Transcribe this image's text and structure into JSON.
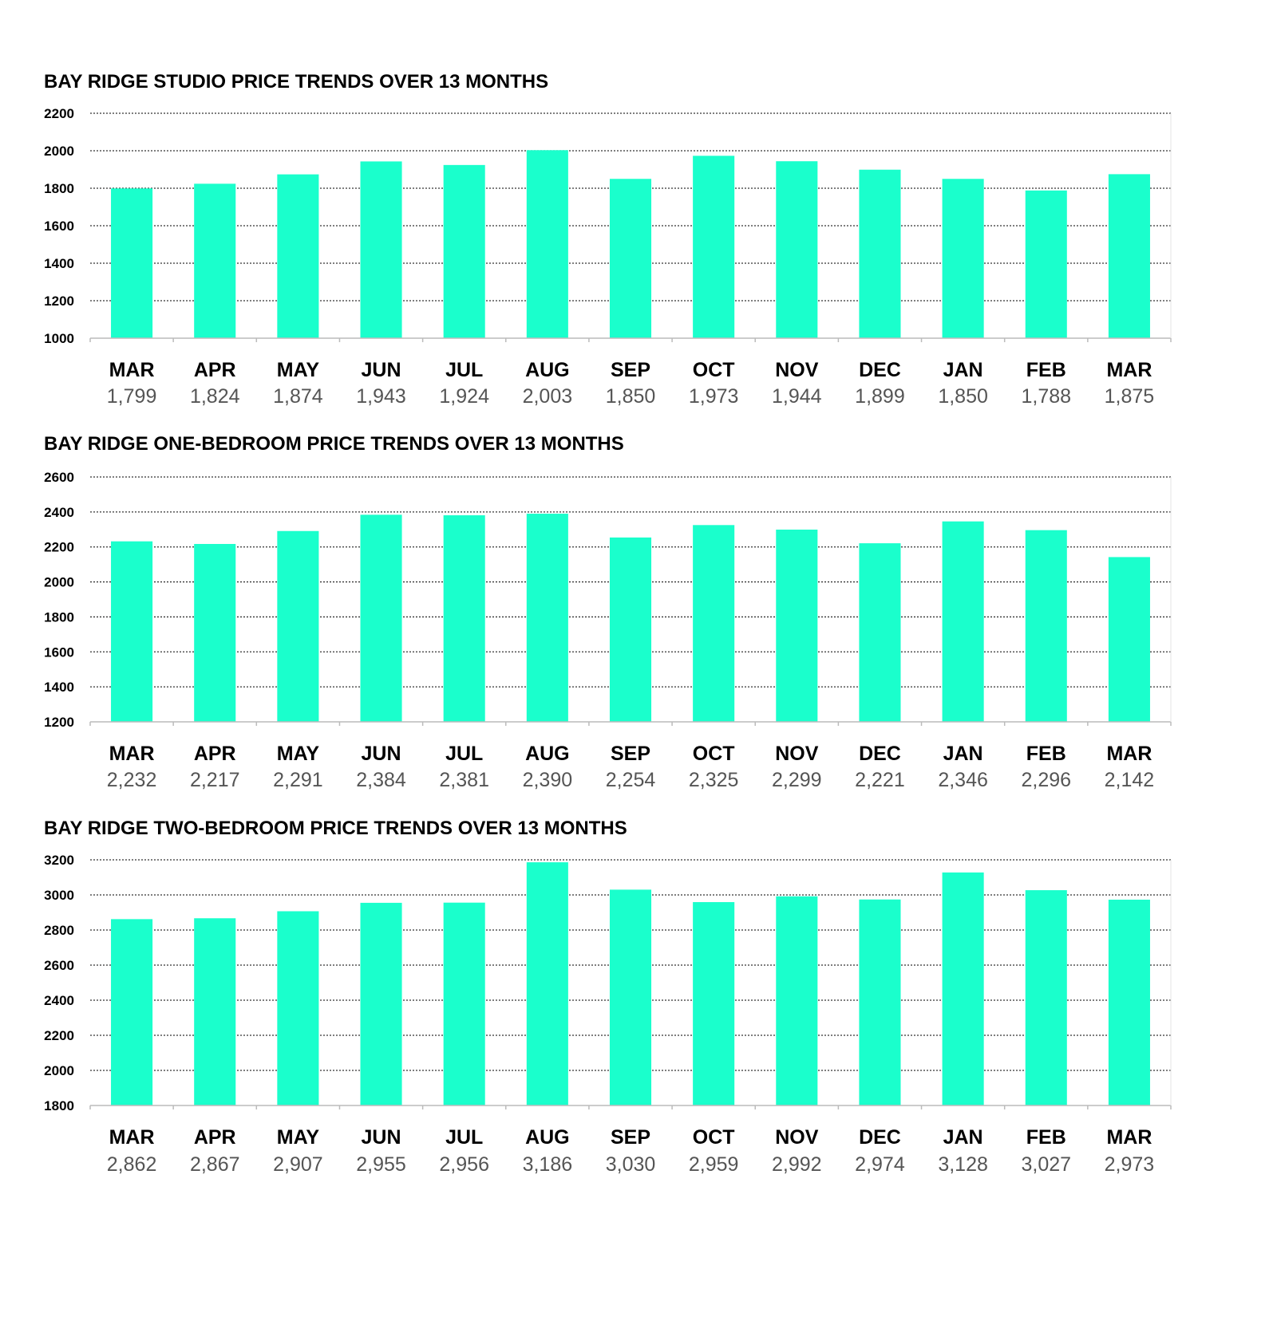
{
  "chart_data": [
    {
      "type": "bar",
      "title": "BAY RIDGE STUDIO PRICE TRENDS OVER 13 MONTHS",
      "categories": [
        "MAR",
        "APR",
        "MAY",
        "JUN",
        "JUL",
        "AUG",
        "SEP",
        "OCT",
        "NOV",
        "DEC",
        "JAN",
        "FEB",
        "MAR"
      ],
      "values": [
        1799,
        1824,
        1874,
        1943,
        1924,
        2003,
        1850,
        1973,
        1944,
        1899,
        1850,
        1788,
        1875
      ],
      "value_labels": [
        "1,799",
        "1,824",
        "1,874",
        "1,943",
        "1,924",
        "2,003",
        "1,850",
        "1,973",
        "1,944",
        "1,899",
        "1,850",
        "1,788",
        "1,875"
      ],
      "yticks": [
        1000,
        1200,
        1400,
        1600,
        1800,
        2000,
        2200
      ],
      "ylim": [
        1000,
        2200
      ],
      "grid": true,
      "xlabel": "",
      "ylabel": ""
    },
    {
      "type": "bar",
      "title": "BAY RIDGE ONE-BEDROOM PRICE TRENDS OVER 13 MONTHS",
      "categories": [
        "MAR",
        "APR",
        "MAY",
        "JUN",
        "JUL",
        "AUG",
        "SEP",
        "OCT",
        "NOV",
        "DEC",
        "JAN",
        "FEB",
        "MAR"
      ],
      "values": [
        2232,
        2217,
        2291,
        2384,
        2381,
        2390,
        2254,
        2325,
        2299,
        2221,
        2346,
        2296,
        2142
      ],
      "value_labels": [
        "2,232",
        "2,217",
        "2,291",
        "2,384",
        "2,381",
        "2,390",
        "2,254",
        "2,325",
        "2,299",
        "2,221",
        "2,346",
        "2,296",
        "2,142"
      ],
      "yticks": [
        1200,
        1400,
        1600,
        1800,
        2000,
        2200,
        2400,
        2600
      ],
      "ylim": [
        1200,
        2600
      ],
      "grid": true,
      "xlabel": "",
      "ylabel": ""
    },
    {
      "type": "bar",
      "title": "BAY RIDGE TWO-BEDROOM PRICE TRENDS OVER 13 MONTHS",
      "categories": [
        "MAR",
        "APR",
        "MAY",
        "JUN",
        "JUL",
        "AUG",
        "SEP",
        "OCT",
        "NOV",
        "DEC",
        "JAN",
        "FEB",
        "MAR"
      ],
      "values": [
        2862,
        2867,
        2907,
        2955,
        2956,
        3186,
        3030,
        2959,
        2992,
        2974,
        3128,
        3027,
        2973
      ],
      "value_labels": [
        "2,862",
        "2,867",
        "2,907",
        "2,955",
        "2,956",
        "3,186",
        "3,030",
        "2,959",
        "2,992",
        "2,974",
        "3,128",
        "3,027",
        "2,973"
      ],
      "yticks": [
        1800,
        2000,
        2200,
        2400,
        2600,
        2800,
        3000,
        3200
      ],
      "ylim": [
        1800,
        3200
      ],
      "grid": true,
      "xlabel": "",
      "ylabel": ""
    }
  ],
  "colors": {
    "bar": "#1affcc",
    "grid": "#333333",
    "axis": "#bbbbbb",
    "value_text": "#555555"
  }
}
